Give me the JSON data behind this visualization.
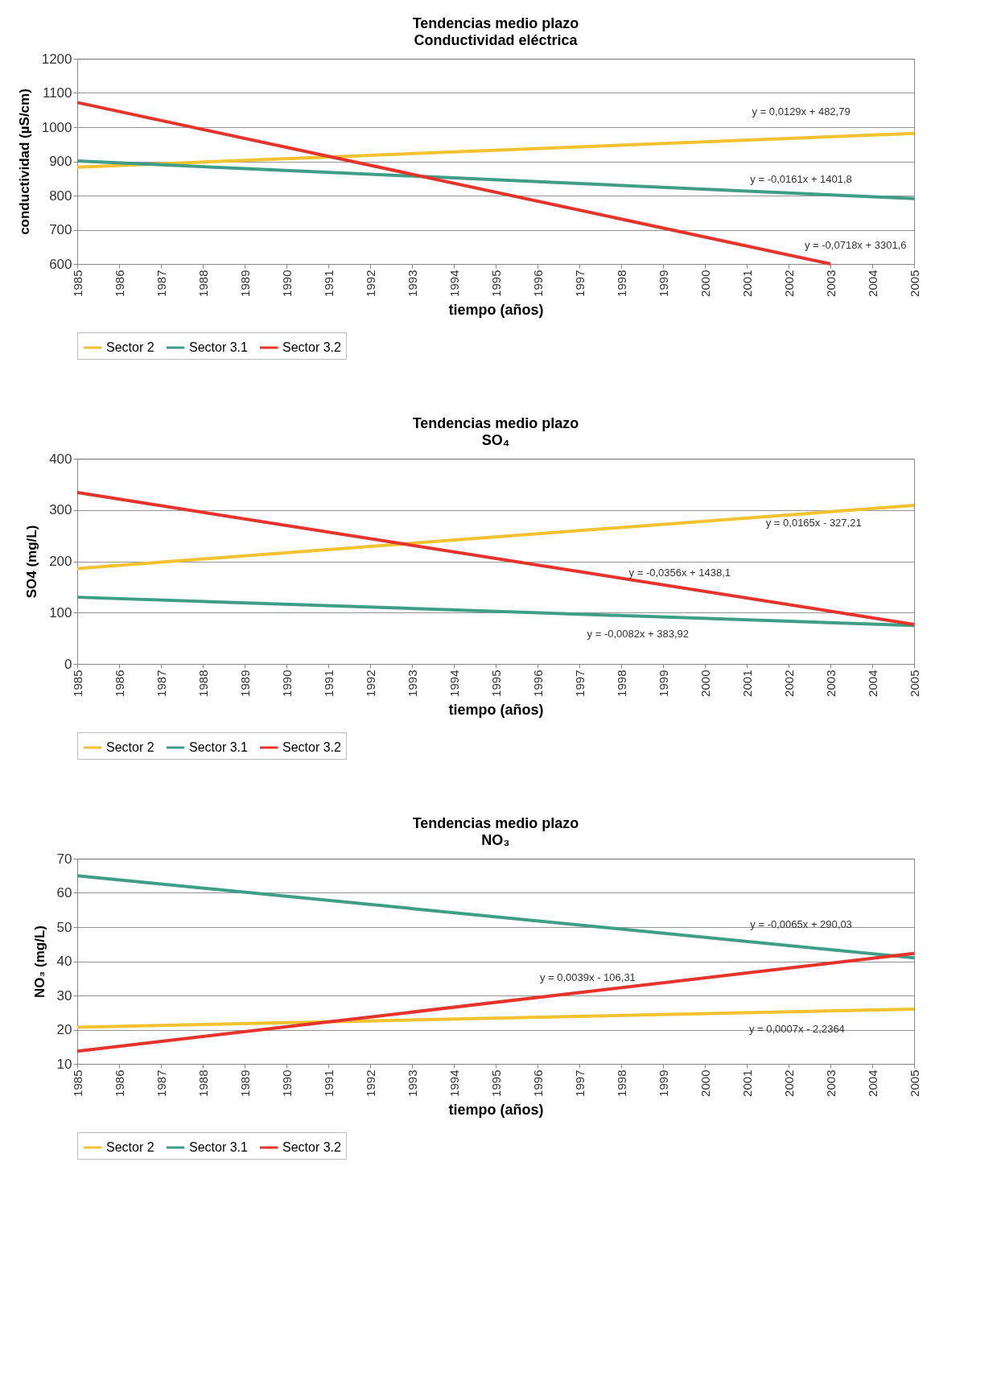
{
  "chart_data": [
    {
      "type": "line",
      "title": "Tendencias medio plazo",
      "subtitle": "Conductividad eléctrica",
      "xlabel": "tiempo (años)",
      "ylabel": "conductividad (µS/cm)",
      "xlim": [
        1985,
        2005
      ],
      "xticks": [
        1985,
        1986,
        1987,
        1988,
        1989,
        1990,
        1991,
        1992,
        1993,
        1994,
        1995,
        1996,
        1997,
        1998,
        1999,
        2000,
        2001,
        2002,
        2003,
        2004,
        2005
      ],
      "ylim": [
        600,
        1200
      ],
      "yticks": [
        600,
        700,
        800,
        900,
        1000,
        1100,
        1200
      ],
      "grid": "y",
      "legend": "bottom",
      "series": [
        {
          "name": "Sector 2",
          "color": "#f2c230",
          "x": [
            1985,
            2005
          ],
          "values": [
            883,
            982
          ]
        },
        {
          "name": "Sector 3.1",
          "color": "#3f9e88",
          "x": [
            1985,
            2005
          ],
          "values": [
            901,
            791
          ]
        },
        {
          "name": "Sector 3.2",
          "color": "#e8332a",
          "x": [
            1985,
            2003
          ],
          "values": [
            1072,
            600
          ]
        }
      ],
      "annotations": [
        "y = 0,0129x + 482,79",
        "y = -0,0161x + 1401,8",
        "y = -0,0718x + 3301,6"
      ]
    },
    {
      "type": "line",
      "title": "Tendencias medio plazo",
      "subtitle": "SO₄",
      "xlabel": "tiempo (años)",
      "ylabel": "SO4 (mg/L)",
      "xlim": [
        1985,
        2005
      ],
      "xticks": [
        1985,
        1986,
        1987,
        1988,
        1989,
        1990,
        1991,
        1992,
        1993,
        1994,
        1995,
        1996,
        1997,
        1998,
        1999,
        2000,
        2001,
        2002,
        2003,
        2004,
        2005
      ],
      "ylim": [
        0,
        400
      ],
      "yticks": [
        0,
        100,
        200,
        300,
        400
      ],
      "grid": "y",
      "legend": "bottom",
      "series": [
        {
          "name": "Sector 2",
          "color": "#f2c230",
          "x": [
            1985,
            2005
          ],
          "values": [
            186,
            309
          ]
        },
        {
          "name": "Sector 3.1",
          "color": "#3f9e88",
          "x": [
            1985,
            2005
          ],
          "values": [
            130,
            75
          ]
        },
        {
          "name": "Sector 3.2",
          "color": "#e8332a",
          "x": [
            1985,
            2005
          ],
          "values": [
            334,
            77
          ]
        }
      ],
      "annotations": [
        "y = 0,0165x - 327,21",
        "y = -0,0356x + 1438,1",
        "y = -0,0082x + 383,92"
      ]
    },
    {
      "type": "line",
      "title": "Tendencias medio plazo",
      "subtitle": "NO₃",
      "xlabel": "tiempo (años)",
      "ylabel": "NO₃ (mg/L)",
      "xlim": [
        1985,
        2005
      ],
      "xticks": [
        1985,
        1986,
        1987,
        1988,
        1989,
        1990,
        1991,
        1992,
        1993,
        1994,
        1995,
        1996,
        1997,
        1998,
        1999,
        2000,
        2001,
        2002,
        2003,
        2004,
        2005
      ],
      "ylim": [
        10,
        70
      ],
      "yticks": [
        10,
        20,
        30,
        40,
        50,
        60,
        70
      ],
      "grid": "y",
      "legend": "bottom",
      "series": [
        {
          "name": "Sector 2",
          "color": "#f2c230",
          "x": [
            1985,
            2005
          ],
          "values": [
            20.7,
            26
          ]
        },
        {
          "name": "Sector 3.1",
          "color": "#3f9e88",
          "x": [
            1985,
            2005
          ],
          "values": [
            65,
            41
          ]
        },
        {
          "name": "Sector 3.2",
          "color": "#e8332a",
          "x": [
            1985,
            2005
          ],
          "values": [
            13.7,
            42.3
          ]
        }
      ],
      "annotations": [
        "y = -0,0065x + 290,03",
        "y = 0,0039x - 106,31",
        "y = 0,0007x - 2,2364"
      ]
    }
  ]
}
